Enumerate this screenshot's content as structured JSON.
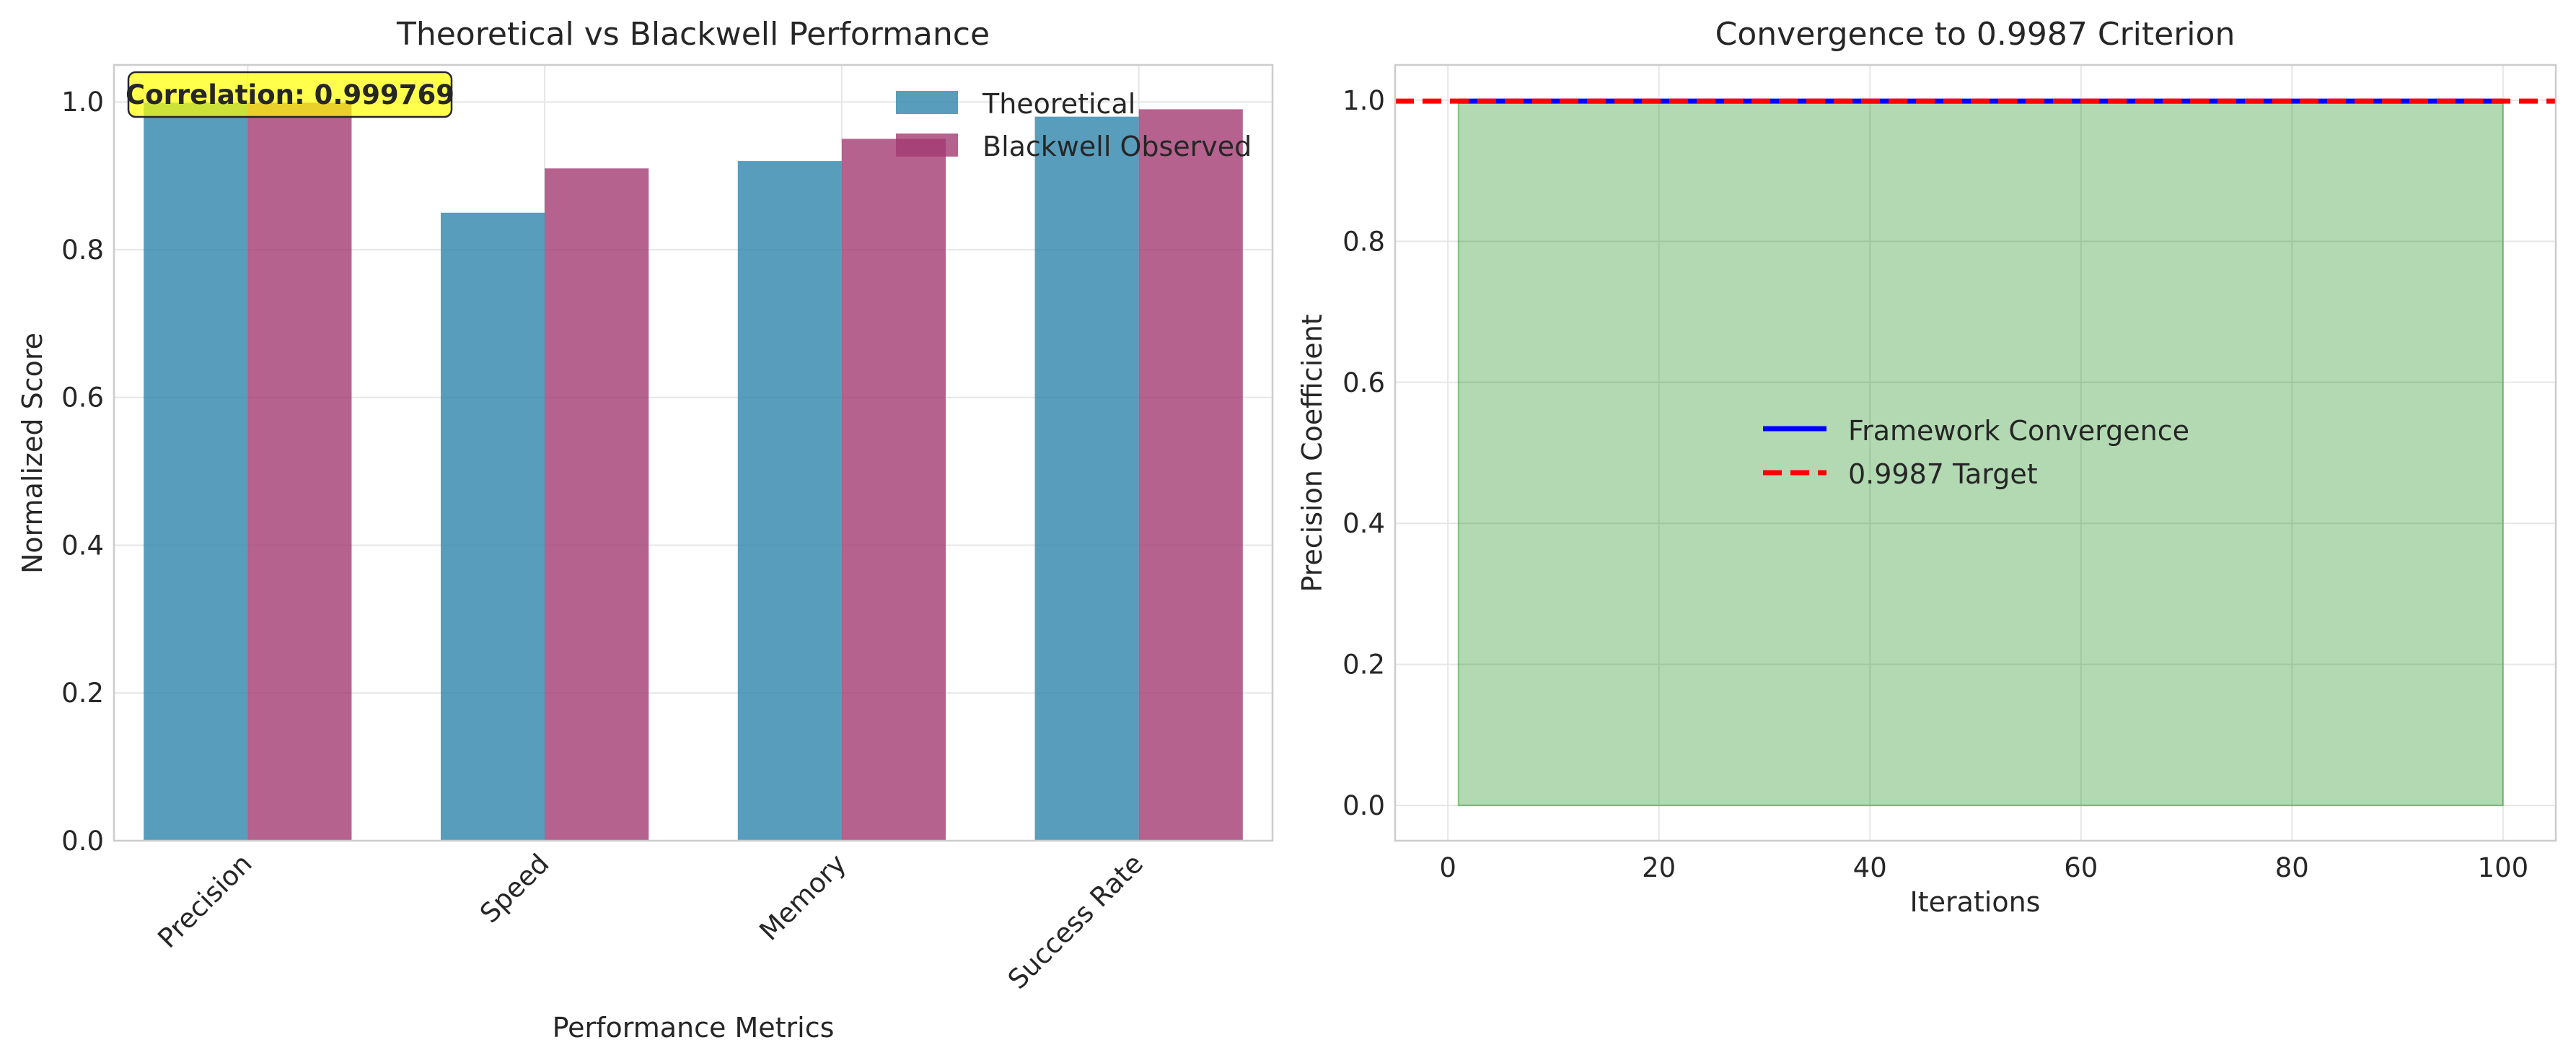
{
  "chart_data": [
    {
      "type": "bar",
      "title": "Theoretical vs Blackwell Performance",
      "xlabel": "Performance Metrics",
      "ylabel": "Normalized Score",
      "categories": [
        "Precision",
        "Speed",
        "Memory",
        "Success Rate"
      ],
      "series": [
        {
          "name": "Theoretical",
          "values": [
            0.9987,
            0.85,
            0.92,
            0.98
          ],
          "color": "#2E86AB"
        },
        {
          "name": "Blackwell Observed",
          "values": [
            0.9987,
            0.91,
            0.95,
            0.99
          ],
          "color": "#A23B72"
        }
      ],
      "ylim": [
        0,
        1.05
      ],
      "yticks": [
        "0.0",
        "0.2",
        "0.4",
        "0.6",
        "0.8",
        "1.0"
      ],
      "annotation": "Correlation: 0.999769",
      "annotation_color": "#FFFF00",
      "legend": "top-right",
      "grid": true
    },
    {
      "type": "area",
      "title": "Convergence to 0.9987 Criterion",
      "xlabel": "Iterations",
      "ylabel": "Precision Coefficient",
      "x_range": [
        1,
        100
      ],
      "xlim": [
        -5,
        105
      ],
      "ylim": [
        -0.05,
        1.05
      ],
      "xticks": [
        "0",
        "20",
        "40",
        "60",
        "80",
        "100"
      ],
      "yticks": [
        "0.0",
        "0.2",
        "0.4",
        "0.6",
        "0.8",
        "1.0"
      ],
      "series": [
        {
          "name": "Framework Convergence",
          "value": 0.9987,
          "color": "#0000FF",
          "style": "solid"
        },
        {
          "name": "0.9987 Target",
          "value": 0.9987,
          "color": "#FF0000",
          "style": "dashed"
        }
      ],
      "fill_color": "#008000",
      "legend": "center",
      "grid": true
    }
  ]
}
